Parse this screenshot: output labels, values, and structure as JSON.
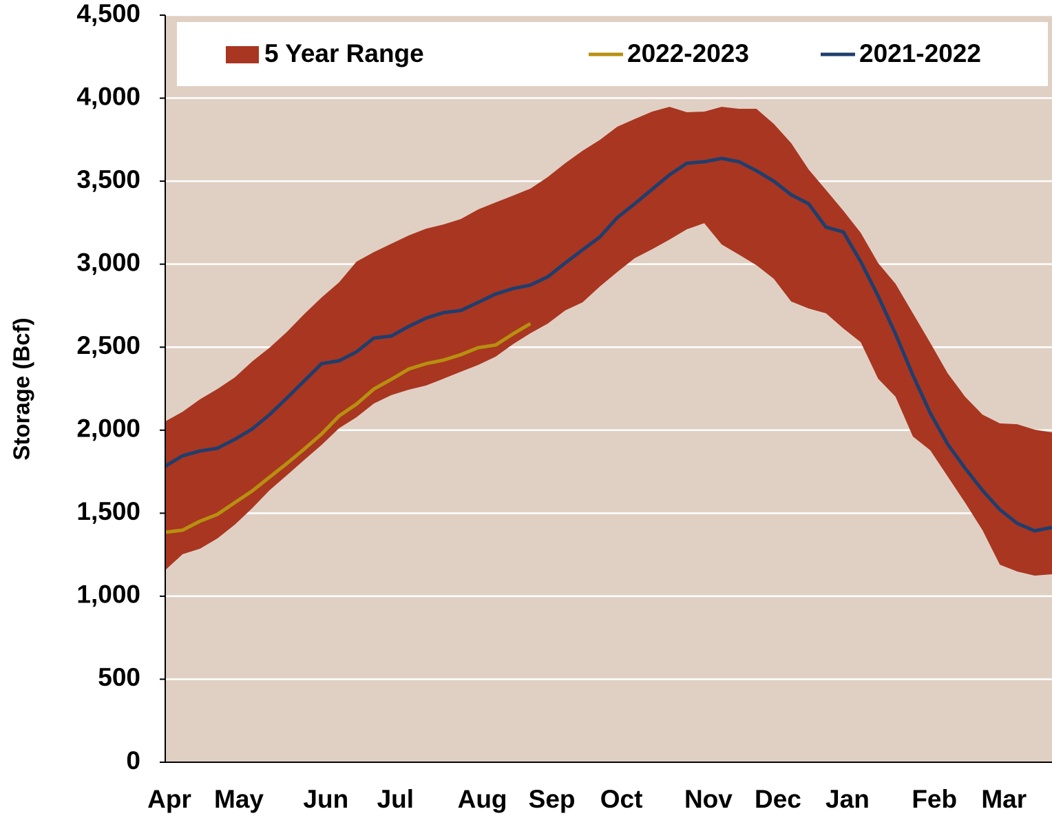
{
  "chart_data": {
    "type": "line",
    "y_label": "Storage (Bcf)",
    "categories": [
      "Apr",
      null,
      null,
      null,
      "May",
      null,
      null,
      null,
      null,
      "Jun",
      null,
      null,
      null,
      "Jul",
      null,
      null,
      null,
      null,
      "Aug",
      null,
      null,
      null,
      "Sep",
      null,
      null,
      null,
      "Oct",
      null,
      null,
      null,
      null,
      "Nov",
      null,
      null,
      null,
      "Dec",
      null,
      null,
      null,
      "Jan",
      null,
      null,
      null,
      null,
      "Feb",
      null,
      null,
      null,
      "Mar",
      null,
      null,
      null
    ],
    "series": [
      {
        "name": "5 Year Range",
        "color": "#a93621",
        "type": "band",
        "upper": [
          2053,
          2111,
          2186,
          2248,
          2318,
          2414,
          2497,
          2592,
          2700,
          2800,
          2891,
          3015,
          3073,
          3123,
          3173,
          3214,
          3239,
          3272,
          3330,
          3372,
          3413,
          3455,
          3525,
          3608,
          3683,
          3749,
          3828,
          3874,
          3919,
          3948,
          3915,
          3919,
          3948,
          3936,
          3936,
          3845,
          3729,
          3571,
          3447,
          3322,
          3189,
          3007,
          2882,
          2704,
          2526,
          2343,
          2202,
          2094,
          2041,
          2036,
          2003,
          1987
        ],
        "lower": [
          1157,
          1253,
          1286,
          1348,
          1431,
          1530,
          1638,
          1729,
          1821,
          1912,
          2012,
          2078,
          2161,
          2211,
          2244,
          2269,
          2310,
          2352,
          2393,
          2443,
          2518,
          2584,
          2642,
          2721,
          2770,
          2866,
          2953,
          3036,
          3090,
          3148,
          3210,
          3247,
          3119,
          3057,
          2994,
          2912,
          2775,
          2733,
          2704,
          2613,
          2530,
          2310,
          2202,
          1962,
          1879,
          1721,
          1564,
          1398,
          1190,
          1149,
          1124,
          1132
        ]
      },
      {
        "name": "2022-2023",
        "color": "#b8900f",
        "values": [
          1385,
          1398,
          1452,
          1493,
          1564,
          1634,
          1717,
          1800,
          1887,
          1978,
          2086,
          2157,
          2248,
          2306,
          2368,
          2401,
          2422,
          2455,
          2497,
          2513,
          2580,
          2642,
          null,
          null,
          null,
          null,
          null,
          null,
          null,
          null,
          null,
          null,
          null,
          null,
          null,
          null,
          null,
          null,
          null,
          null,
          null,
          null,
          null,
          null,
          null,
          null,
          null,
          null,
          null,
          null,
          null,
          null
        ]
      },
      {
        "name": "2021-2022",
        "color": "#1f3e6e",
        "values": [
          1783,
          1846,
          1875,
          1891,
          1945,
          2007,
          2094,
          2194,
          2298,
          2401,
          2418,
          2472,
          2555,
          2567,
          2625,
          2675,
          2708,
          2721,
          2770,
          2820,
          2853,
          2874,
          2924,
          3007,
          3086,
          3164,
          3281,
          3364,
          3451,
          3538,
          3608,
          3617,
          3637,
          3617,
          3563,
          3500,
          3418,
          3364,
          3223,
          3194,
          3015,
          2808,
          2580,
          2331,
          2103,
          1916,
          1771,
          1638,
          1522,
          1439,
          1394,
          1414
        ]
      }
    ],
    "ylim": [
      0,
      4500
    ],
    "yticks": [
      0,
      500,
      {
        "value": 1000,
        "label": "1,000"
      },
      {
        "value": 1500,
        "label": "1,500"
      },
      {
        "value": 2000,
        "label": "2,000"
      },
      {
        "value": 2500,
        "label": "2,500"
      },
      {
        "value": 3000,
        "label": "3,000"
      },
      {
        "value": 3500,
        "label": "3,500"
      },
      {
        "value": 4000,
        "label": "4,000"
      },
      {
        "value": 4500,
        "label": "4,500"
      }
    ],
    "grid": true,
    "legend": "top",
    "plot_background": "#e0d0c4"
  }
}
